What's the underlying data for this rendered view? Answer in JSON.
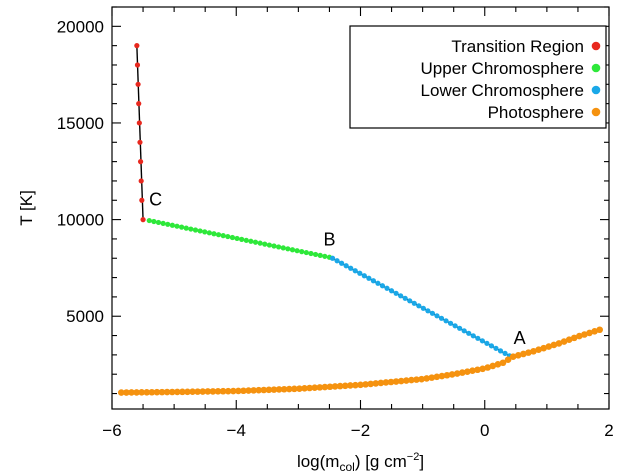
{
  "chart_data": {
    "type": "scatter",
    "title": "",
    "xlabel_parts": {
      "main": "log(m",
      "sub": "col",
      "rest": ") [g cm",
      "sup": "−2",
      "end": "]"
    },
    "ylabel": "T [K]",
    "xlim": [
      -6.0,
      2.0
    ],
    "ylim": [
      200,
      21000
    ],
    "xticks": [
      -6,
      -4,
      -2,
      0,
      2
    ],
    "xtick_labels": [
      "−6",
      "−4",
      "−2",
      "0",
      "2"
    ],
    "yticks": [
      5000,
      10000,
      15000,
      20000
    ],
    "ytick_labels": [
      "5000",
      "10000",
      "15000",
      "20000"
    ],
    "grid": false,
    "legend_position": "top-right",
    "series": [
      {
        "name": "Transition Region",
        "color": "#e8281e",
        "line": [
          [
            -5.6,
            19000
          ],
          [
            -5.5,
            10000
          ]
        ],
        "points": [
          [
            -5.6,
            19000
          ],
          [
            -5.59,
            18000
          ],
          [
            -5.58,
            17000
          ],
          [
            -5.57,
            16000
          ],
          [
            -5.56,
            15000
          ],
          [
            -5.55,
            14000
          ],
          [
            -5.54,
            13000
          ],
          [
            -5.53,
            12000
          ],
          [
            -5.52,
            11000
          ],
          [
            -5.5,
            10000
          ]
        ]
      },
      {
        "name": "Upper Chromosphere",
        "color": "#2ee83a",
        "line": [
          [
            -5.4,
            9950
          ],
          [
            -2.5,
            8050
          ]
        ],
        "n_points": 40
      },
      {
        "name": "Lower Chromosphere",
        "color": "#1aa8e8",
        "line": [
          [
            -2.45,
            8000
          ],
          [
            0.4,
            2950
          ]
        ],
        "n_points": 40
      },
      {
        "name": "Photosphere",
        "color": "#f5920f",
        "curve": [
          [
            -5.85,
            1050
          ],
          [
            -5.0,
            1080
          ],
          [
            -4.0,
            1130
          ],
          [
            -3.0,
            1250
          ],
          [
            -2.0,
            1450
          ],
          [
            -1.0,
            1750
          ],
          [
            -0.5,
            2000
          ],
          [
            0.0,
            2300
          ],
          [
            0.3,
            2600
          ],
          [
            0.45,
            2900
          ],
          [
            0.8,
            3200
          ],
          [
            1.2,
            3600
          ],
          [
            1.5,
            3950
          ],
          [
            1.85,
            4300
          ]
        ],
        "n_points": 95
      }
    ],
    "annotations": [
      {
        "label": "C",
        "x": -5.5,
        "y": 10000
      },
      {
        "label": "B",
        "x": -2.5,
        "y": 8050
      },
      {
        "label": "A",
        "x": 0.4,
        "y": 2950
      }
    ]
  }
}
